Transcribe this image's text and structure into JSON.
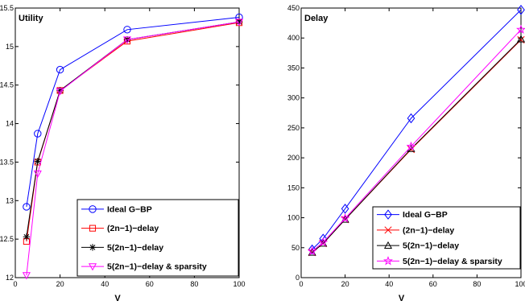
{
  "chart_data": [
    {
      "type": "line",
      "title": "Utility",
      "xlabel": "V",
      "ylabel": "",
      "xlim": [
        0,
        100
      ],
      "ylim": [
        12,
        15.5
      ],
      "xticks": [
        0,
        20,
        40,
        60,
        80,
        100
      ],
      "yticks": [
        12,
        12.5,
        13,
        13.5,
        14,
        14.5,
        15,
        15.5
      ],
      "legend_position": "bottom-right",
      "series": [
        {
          "name": "Ideal G−BP",
          "marker": "circle",
          "color": "#0000ff",
          "x": [
            5,
            10,
            20,
            50,
            100
          ],
          "y": [
            12.92,
            13.87,
            14.7,
            15.22,
            15.38
          ]
        },
        {
          "name": "(2n−1)−delay",
          "marker": "square",
          "color": "#ff0000",
          "x": [
            5,
            10,
            20,
            50,
            100
          ],
          "y": [
            12.47,
            13.5,
            14.43,
            15.07,
            15.31
          ]
        },
        {
          "name": "5(2n−1)−delay",
          "marker": "asterisk",
          "color": "#000000",
          "x": [
            5,
            10,
            20,
            50,
            100
          ],
          "y": [
            12.53,
            13.51,
            14.43,
            15.09,
            15.32
          ]
        },
        {
          "name": "5(2n−1)−delay & sparsity",
          "marker": "triangle-down",
          "color": "#ff00ff",
          "x": [
            5,
            10,
            20,
            50,
            100
          ],
          "y": [
            12.03,
            13.35,
            14.42,
            15.09,
            15.32
          ]
        }
      ]
    },
    {
      "type": "line",
      "title": "Delay",
      "xlabel": "V",
      "ylabel": "",
      "xlim": [
        0,
        100
      ],
      "ylim": [
        0,
        450
      ],
      "xticks": [
        0,
        20,
        40,
        60,
        80,
        100
      ],
      "yticks": [
        0,
        50,
        100,
        150,
        200,
        250,
        300,
        350,
        400,
        450
      ],
      "legend_position": "bottom-right",
      "series": [
        {
          "name": "Ideal G−BP",
          "marker": "diamond",
          "color": "#0000ff",
          "x": [
            5,
            10,
            20,
            50,
            100
          ],
          "y": [
            47,
            65,
            115,
            266,
            447
          ]
        },
        {
          "name": "(2n−1)−delay",
          "marker": "x",
          "color": "#ff0000",
          "x": [
            5,
            10,
            20,
            50,
            100
          ],
          "y": [
            42,
            57,
            97,
            214,
            397
          ]
        },
        {
          "name": "5(2n−1)−delay",
          "marker": "triangle-up",
          "color": "#000000",
          "x": [
            5,
            10,
            20,
            50,
            100
          ],
          "y": [
            42,
            57,
            97,
            215,
            398
          ]
        },
        {
          "name": "5(2n−1)−delay & sparsity",
          "marker": "star",
          "color": "#ff00ff",
          "x": [
            5,
            10,
            20,
            50,
            100
          ],
          "y": [
            44,
            59,
            99,
            219,
            414
          ]
        }
      ]
    }
  ]
}
